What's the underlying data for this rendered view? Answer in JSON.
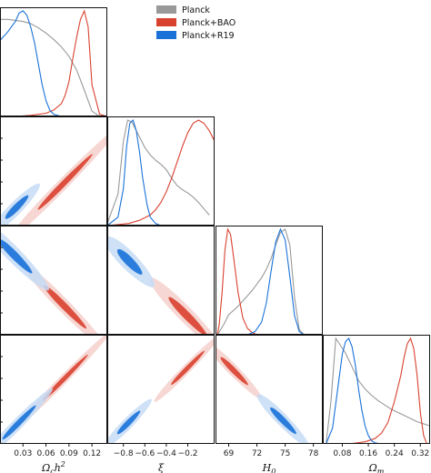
{
  "chart_data": {
    "type": "triangle-plot",
    "parameters": [
      {
        "key": "och2",
        "label_text": "Ω",
        "label_sub": "c",
        "label_rest": "h",
        "label_sup": "2",
        "range": [
          0.0,
          0.14
        ],
        "ticks": [
          0.03,
          0.06,
          0.09,
          0.12
        ],
        "tick_labels": [
          "0.03",
          "0.06",
          "0.09",
          "0.12"
        ]
      },
      {
        "key": "xi",
        "label_text": "ξ",
        "label_sub": "",
        "label_rest": "",
        "label_sup": "",
        "range": [
          -0.95,
          0.05
        ],
        "ticks": [
          -0.8,
          -0.6,
          -0.4,
          -0.2
        ],
        "tick_labels": [
          "−0.8",
          "−0.6",
          "−0.4",
          "−0.2"
        ]
      },
      {
        "key": "H0",
        "label_text": "H",
        "label_sub": "0",
        "label_rest": "",
        "label_sup": "",
        "range": [
          67.6,
          79.0
        ],
        "ticks": [
          69,
          72,
          75,
          78
        ],
        "tick_labels": [
          "69",
          "72",
          "75",
          "78"
        ]
      },
      {
        "key": "Om",
        "label_text": "Ω",
        "label_sub": "m",
        "label_rest": "",
        "label_sup": "",
        "range": [
          0.02,
          0.35
        ],
        "ticks": [
          0.08,
          0.16,
          0.24,
          0.32
        ],
        "tick_labels": [
          "0.08",
          "0.16",
          "0.24",
          "0.32"
        ]
      }
    ],
    "legend": {
      "placement": "top-center",
      "entries": [
        {
          "name": "Planck",
          "color": "#999999"
        },
        {
          "name": "Planck+BAO",
          "color": "#d9412f"
        },
        {
          "name": "Planck+R19",
          "color": "#1a72d9"
        }
      ]
    },
    "series": [
      {
        "name": "Planck",
        "color": "#999999",
        "marginals": {
          "och2": {
            "x": [
              0.0,
              0.01,
              0.02,
              0.03,
              0.04,
              0.05,
              0.06,
              0.07,
              0.08,
              0.09,
              0.1,
              0.11,
              0.12,
              0.13,
              0.14
            ],
            "y": [
              0.92,
              0.92,
              0.91,
              0.9,
              0.88,
              0.84,
              0.79,
              0.73,
              0.66,
              0.57,
              0.44,
              0.25,
              0.05,
              0.0,
              0.0
            ]
          },
          "xi": {
            "x": [
              -0.95,
              -0.85,
              -0.8,
              -0.76,
              -0.72,
              -0.68,
              -0.64,
              -0.6,
              -0.55,
              -0.5,
              -0.45,
              -0.4,
              -0.35,
              -0.3,
              -0.25,
              -0.2,
              -0.15,
              -0.1,
              -0.05,
              0.0
            ],
            "y": [
              0.02,
              0.3,
              0.8,
              1.0,
              0.98,
              0.9,
              0.82,
              0.74,
              0.67,
              0.62,
              0.58,
              0.53,
              0.45,
              0.38,
              0.34,
              0.31,
              0.27,
              0.22,
              0.16,
              0.1
            ]
          },
          "H0": {
            "x": [
              67.8,
              68.5,
              69.0,
              69.5,
              70.0,
              70.5,
              71.0,
              71.5,
              72.0,
              72.5,
              73.0,
              73.5,
              74.0,
              74.5,
              75.0,
              75.5,
              76.0,
              76.5,
              77.0
            ],
            "y": [
              0.0,
              0.1,
              0.19,
              0.23,
              0.27,
              0.32,
              0.37,
              0.42,
              0.48,
              0.54,
              0.62,
              0.72,
              0.85,
              0.97,
              1.0,
              0.85,
              0.35,
              0.05,
              0.0
            ]
          },
          "Om": {
            "x": [
              0.03,
              0.045,
              0.06,
              0.075,
              0.09,
              0.11,
              0.13,
              0.15,
              0.17,
              0.19,
              0.21,
              0.23,
              0.25,
              0.27,
              0.29,
              0.31,
              0.33,
              0.35
            ],
            "y": [
              0.0,
              0.4,
              1.0,
              0.93,
              0.86,
              0.73,
              0.6,
              0.52,
              0.46,
              0.41,
              0.37,
              0.33,
              0.3,
              0.27,
              0.24,
              0.21,
              0.19,
              0.17
            ]
          }
        },
        "contours": []
      },
      {
        "name": "Planck+BAO",
        "color": "#d9412f",
        "marginals": {
          "och2": {
            "x": [
              0.0,
              0.02,
              0.04,
              0.06,
              0.07,
              0.08,
              0.085,
              0.09,
              0.095,
              0.1,
              0.105,
              0.11,
              0.115,
              0.12,
              0.13,
              0.14
            ],
            "y": [
              0.0,
              0.0,
              0.01,
              0.03,
              0.06,
              0.12,
              0.2,
              0.33,
              0.55,
              0.75,
              0.92,
              1.0,
              0.85,
              0.3,
              0.02,
              0.0
            ]
          },
          "xi": {
            "x": [
              -0.95,
              -0.75,
              -0.65,
              -0.55,
              -0.5,
              -0.45,
              -0.4,
              -0.35,
              -0.3,
              -0.25,
              -0.2,
              -0.15,
              -0.1,
              -0.05,
              0.0,
              0.05
            ],
            "y": [
              0.0,
              0.02,
              0.05,
              0.1,
              0.15,
              0.22,
              0.32,
              0.45,
              0.6,
              0.75,
              0.88,
              0.97,
              1.0,
              0.97,
              0.9,
              0.8
            ]
          },
          "H0": {
            "x": [
              67.8,
              68.0,
              68.3,
              68.6,
              68.9,
              69.2,
              69.5,
              70.0,
              70.5,
              71.0,
              71.5,
              72.0,
              73.0
            ],
            "y": [
              0.0,
              0.1,
              0.4,
              0.8,
              1.0,
              0.95,
              0.75,
              0.4,
              0.16,
              0.06,
              0.02,
              0.0,
              0.0
            ]
          },
          "Om": {
            "x": [
              0.1,
              0.15,
              0.18,
              0.2,
              0.22,
              0.24,
              0.26,
              0.27,
              0.28,
              0.29,
              0.3,
              0.31,
              0.32,
              0.33,
              0.34
            ],
            "y": [
              0.0,
              0.02,
              0.05,
              0.1,
              0.2,
              0.4,
              0.65,
              0.82,
              0.95,
              1.0,
              0.9,
              0.65,
              0.3,
              0.08,
              0.0
            ]
          }
        },
        "contours": [
          {
            "pair": [
              "och2",
              "xi"
            ],
            "center": [
              0.085,
              -0.55
            ],
            "slope": 1.0,
            "sigma_u": 0.36,
            "sigma_v": 0.025,
            "shrink": 0.9
          },
          {
            "pair": [
              "och2",
              "H0"
            ],
            "center": [
              0.085,
              70.5
            ],
            "slope": -1.0,
            "sigma_u": 0.28,
            "sigma_v": 0.03,
            "shrink": 0.9
          },
          {
            "pair": [
              "xi",
              "H0"
            ],
            "center": [
              -0.2,
              69.5
            ],
            "slope": -1.0,
            "sigma_u": 0.25,
            "sigma_v": 0.035,
            "shrink": 0.9
          },
          {
            "pair": [
              "och2",
              "Om"
            ],
            "center": [
              0.085,
              0.22
            ],
            "slope": 1.0,
            "sigma_u": 0.3,
            "sigma_v": 0.02,
            "shrink": 0.9
          },
          {
            "pair": [
              "xi",
              "Om"
            ],
            "center": [
              -0.2,
              0.25
            ],
            "slope": 1.0,
            "sigma_u": 0.22,
            "sigma_v": 0.02,
            "shrink": 0.9
          },
          {
            "pair": [
              "H0",
              "Om"
            ],
            "center": [
              69.6,
              0.24
            ],
            "slope": -1.0,
            "sigma_u": 0.18,
            "sigma_v": 0.025,
            "shrink": 0.9
          }
        ]
      },
      {
        "name": "Planck+R19",
        "color": "#1a72d9",
        "marginals": {
          "och2": {
            "x": [
              0.0,
              0.01,
              0.02,
              0.025,
              0.03,
              0.035,
              0.04,
              0.045,
              0.05,
              0.055,
              0.06,
              0.065,
              0.07,
              0.08,
              0.09
            ],
            "y": [
              0.72,
              0.8,
              0.9,
              0.98,
              1.0,
              0.96,
              0.85,
              0.7,
              0.5,
              0.3,
              0.15,
              0.06,
              0.02,
              0.0,
              0.0
            ]
          },
          "xi": {
            "x": [
              -0.95,
              -0.85,
              -0.8,
              -0.77,
              -0.74,
              -0.71,
              -0.68,
              -0.65,
              -0.62,
              -0.58,
              -0.55,
              -0.5,
              -0.45,
              -0.4
            ],
            "y": [
              0.0,
              0.08,
              0.35,
              0.75,
              0.97,
              1.0,
              0.9,
              0.7,
              0.45,
              0.2,
              0.08,
              0.02,
              0.0,
              0.0
            ]
          },
          "H0": {
            "x": [
              71.0,
              71.8,
              72.5,
              73.0,
              73.5,
              74.0,
              74.5,
              75.0,
              75.5,
              76.0,
              76.5,
              77.0
            ],
            "y": [
              0.0,
              0.03,
              0.12,
              0.3,
              0.6,
              0.88,
              1.0,
              0.9,
              0.55,
              0.18,
              0.03,
              0.0
            ]
          },
          "Om": {
            "x": [
              0.03,
              0.05,
              0.065,
              0.08,
              0.09,
              0.1,
              0.11,
              0.12,
              0.13,
              0.14,
              0.15,
              0.16,
              0.17,
              0.18,
              0.2
            ],
            "y": [
              0.0,
              0.15,
              0.5,
              0.85,
              0.97,
              1.0,
              0.92,
              0.75,
              0.52,
              0.32,
              0.17,
              0.08,
              0.03,
              0.01,
              0.0
            ]
          }
        },
        "contours": [
          {
            "pair": [
              "och2",
              "xi"
            ],
            "center": [
              0.022,
              -0.78
            ],
            "slope": 1.0,
            "sigma_u": 0.15,
            "sigma_v": 0.03,
            "shrink": 0.9
          },
          {
            "pair": [
              "och2",
              "H0"
            ],
            "center": [
              0.02,
              75.8
            ],
            "slope": -1.0,
            "sigma_u": 0.22,
            "sigma_v": 0.035,
            "shrink": 0.9
          },
          {
            "pair": [
              "xi",
              "H0"
            ],
            "center": [
              -0.74,
              75.2
            ],
            "slope": -1.0,
            "sigma_u": 0.16,
            "sigma_v": 0.04,
            "shrink": 0.9
          },
          {
            "pair": [
              "och2",
              "Om"
            ],
            "center": [
              0.025,
              0.085
            ],
            "slope": 1.0,
            "sigma_u": 0.22,
            "sigma_v": 0.025,
            "shrink": 0.9
          },
          {
            "pair": [
              "xi",
              "Om"
            ],
            "center": [
              -0.75,
              0.085
            ],
            "slope": 1.0,
            "sigma_u": 0.15,
            "sigma_v": 0.025,
            "shrink": 0.9
          },
          {
            "pair": [
              "H0",
              "Om"
            ],
            "center": [
              74.8,
              0.09
            ],
            "slope": -1.0,
            "sigma_u": 0.17,
            "sigma_v": 0.028,
            "shrink": 0.9
          }
        ]
      }
    ],
    "grid": false
  }
}
